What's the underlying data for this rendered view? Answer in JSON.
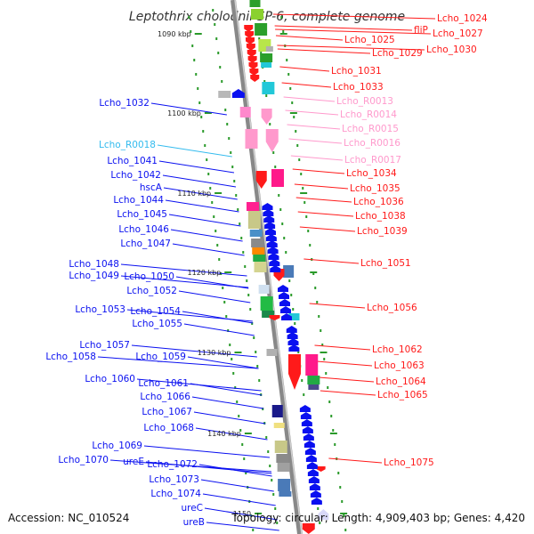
{
  "title": "Leptothrix cholodnii SP-6, complete genome",
  "footer": {
    "accession": "Accession: NC_010524",
    "summary": "Topology: circular; Length: 4,909,403 bp; Genes: 4,420"
  },
  "colors": {
    "forward_gene": "#0a10f0",
    "reverse_gene": "#ff1a1a",
    "rna_forward": "#33bbee",
    "rna_reverse": "#ff99cc",
    "backbone": "#888888",
    "tick": "#2a9a2a"
  },
  "kbp_marks": [
    "1090 kbp",
    "1100 kbp",
    "1110 kbp",
    "1120 kbp",
    "1130 kbp",
    "1140 kbp",
    "1150"
  ],
  "left_labels": [
    {
      "text": "Lcho_1032",
      "kind": "gene"
    },
    {
      "text": "Lcho_R0018",
      "kind": "rna"
    },
    {
      "text": "Lcho_1041",
      "kind": "gene"
    },
    {
      "text": "Lcho_1042",
      "kind": "gene"
    },
    {
      "text": "hscA",
      "kind": "gene"
    },
    {
      "text": "Lcho_1044",
      "kind": "gene"
    },
    {
      "text": "Lcho_1045",
      "kind": "gene"
    },
    {
      "text": "Lcho_1046",
      "kind": "gene"
    },
    {
      "text": "Lcho_1047",
      "kind": "gene"
    },
    {
      "text": "Lcho_1048",
      "kind": "gene"
    },
    {
      "text": "Lcho_1049",
      "kind": "gene"
    },
    {
      "text": "Lcho_1050",
      "kind": "gene"
    },
    {
      "text": "Lcho_1052",
      "kind": "gene"
    },
    {
      "text": "Lcho_1053",
      "kind": "gene"
    },
    {
      "text": "Lcho_1054",
      "kind": "gene"
    },
    {
      "text": "Lcho_1055",
      "kind": "gene"
    },
    {
      "text": "Lcho_1057",
      "kind": "gene"
    },
    {
      "text": "Lcho_1058",
      "kind": "gene"
    },
    {
      "text": "Lcho_1059",
      "kind": "gene"
    },
    {
      "text": "Lcho_1060",
      "kind": "gene"
    },
    {
      "text": "Lcho_1061",
      "kind": "gene"
    },
    {
      "text": "Lcho_1066",
      "kind": "gene"
    },
    {
      "text": "Lcho_1067",
      "kind": "gene"
    },
    {
      "text": "Lcho_1068",
      "kind": "gene"
    },
    {
      "text": "Lcho_1069",
      "kind": "gene"
    },
    {
      "text": "Lcho_1070",
      "kind": "gene"
    },
    {
      "text": "ureE",
      "kind": "gene"
    },
    {
      "text": "Lcho_1072",
      "kind": "gene"
    },
    {
      "text": "Lcho_1073",
      "kind": "gene"
    },
    {
      "text": "Lcho_1074",
      "kind": "gene"
    },
    {
      "text": "ureC",
      "kind": "gene"
    },
    {
      "text": "ureB",
      "kind": "gene"
    }
  ],
  "right_labels": [
    {
      "text": "Lcho_1024",
      "kind": "gene"
    },
    {
      "text": "fliP",
      "kind": "gene"
    },
    {
      "text": "Lcho_1027",
      "kind": "gene"
    },
    {
      "text": "Lcho_1025",
      "kind": "gene"
    },
    {
      "text": "Lcho_1030",
      "kind": "gene"
    },
    {
      "text": "Lcho_1029",
      "kind": "gene"
    },
    {
      "text": "Lcho_1031",
      "kind": "gene"
    },
    {
      "text": "Lcho_1033",
      "kind": "gene"
    },
    {
      "text": "Lcho_R0013",
      "kind": "rna"
    },
    {
      "text": "Lcho_R0014",
      "kind": "rna"
    },
    {
      "text": "Lcho_R0015",
      "kind": "rna"
    },
    {
      "text": "Lcho_R0016",
      "kind": "rna"
    },
    {
      "text": "Lcho_R0017",
      "kind": "rna"
    },
    {
      "text": "Lcho_1034",
      "kind": "gene"
    },
    {
      "text": "Lcho_1035",
      "kind": "gene"
    },
    {
      "text": "Lcho_1036",
      "kind": "gene"
    },
    {
      "text": "Lcho_1038",
      "kind": "gene"
    },
    {
      "text": "Lcho_1039",
      "kind": "gene"
    },
    {
      "text": "Lcho_1051",
      "kind": "gene"
    },
    {
      "text": "Lcho_1056",
      "kind": "gene"
    },
    {
      "text": "Lcho_1062",
      "kind": "gene"
    },
    {
      "text": "Lcho_1063",
      "kind": "gene"
    },
    {
      "text": "Lcho_1064",
      "kind": "gene"
    },
    {
      "text": "Lcho_1065",
      "kind": "gene"
    },
    {
      "text": "Lcho_1075",
      "kind": "gene"
    }
  ]
}
